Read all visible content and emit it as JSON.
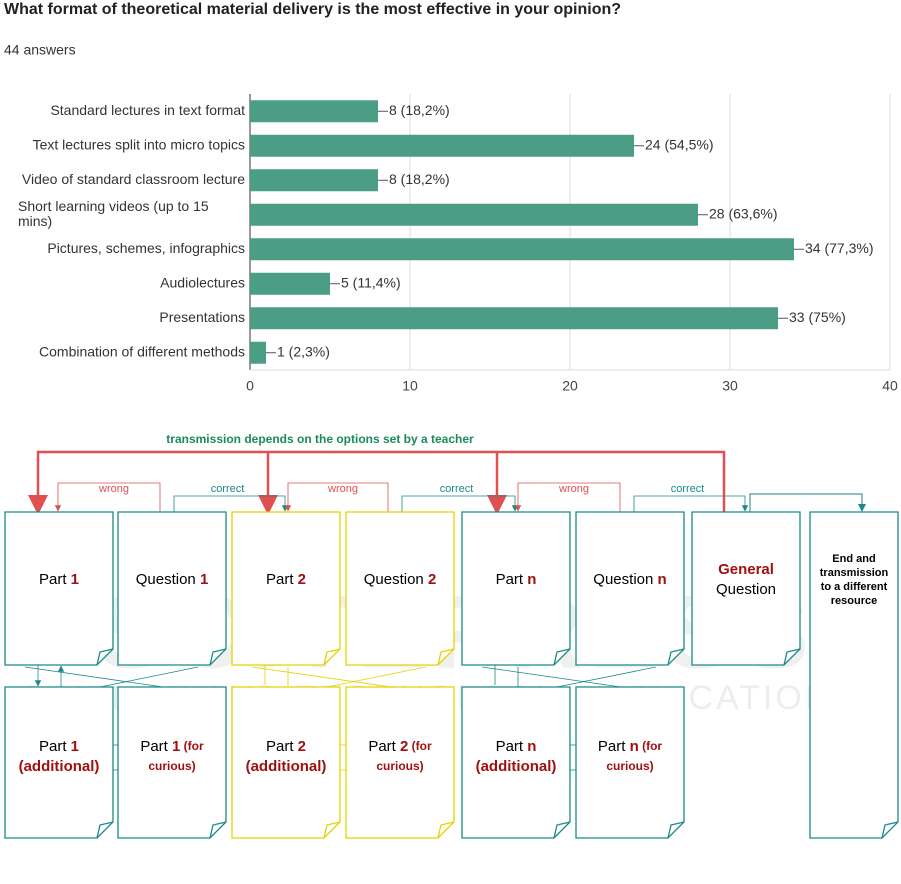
{
  "chart_data": {
    "type": "bar",
    "orientation": "horizontal",
    "title": "What format of theoretical material delivery is the most effective in your opinion?",
    "subtitle": "44 answers",
    "categories": [
      "Standard lectures in text format",
      "Text lectures split into micro topics",
      "Video of standard classroom lecture",
      "Short learning videos (up to 15 mins)",
      "Pictures, schemes, infographics",
      "Audiolectures",
      "Presentations",
      "Combination of different methods"
    ],
    "values": [
      8,
      24,
      8,
      28,
      34,
      5,
      33,
      1
    ],
    "value_labels": [
      "8 (18,2%)",
      "24 (54,5%)",
      "8 (18,2%)",
      "28 (63,6%)",
      "34 (77,3%)",
      "5 (11,4%)",
      "33 (75%)",
      "1 (2,3%)"
    ],
    "color": "#4b9e85",
    "xlim": [
      0,
      40
    ],
    "xticks": [
      0,
      10,
      20,
      30,
      40
    ],
    "grid": true
  },
  "diagram": {
    "title": "transmission depends on the options set by a teacher",
    "edges": [
      {
        "label": "wrong"
      },
      {
        "label": "correct"
      },
      {
        "label": "wrong"
      },
      {
        "label": "correct"
      },
      {
        "label": "wrong"
      },
      {
        "label": "correct"
      }
    ],
    "nodes": [
      {
        "color": "#1b8a86",
        "lines": [
          [
            [
              "Part ",
              "n"
            ],
            [
              "1",
              "r"
            ]
          ]
        ]
      },
      {
        "color": "#1b8a86",
        "lines": [
          [
            [
              "Question ",
              "n"
            ],
            [
              "1",
              "r"
            ]
          ]
        ]
      },
      {
        "color": "#e3d400",
        "lines": [
          [
            [
              "Part ",
              "n"
            ],
            [
              "2",
              "r"
            ]
          ]
        ]
      },
      {
        "color": "#e3d400",
        "lines": [
          [
            [
              "Question ",
              "n"
            ],
            [
              "2",
              "r"
            ]
          ]
        ]
      },
      {
        "color": "#1b8a86",
        "lines": [
          [
            [
              "Part ",
              "n"
            ],
            [
              "n",
              "r"
            ]
          ]
        ]
      },
      {
        "color": "#1b8a86",
        "lines": [
          [
            [
              "Question ",
              "n"
            ],
            [
              "n",
              "r"
            ]
          ]
        ]
      },
      {
        "color": "#1b8a86",
        "lines": [
          [
            [
              "General",
              "r"
            ]
          ],
          [
            [
              "Question",
              "n"
            ]
          ]
        ]
      },
      {
        "color": "#1b8a86",
        "lines": [
          [
            [
              "End and",
              "b"
            ]
          ],
          [
            [
              "transmission",
              "b"
            ]
          ],
          [
            [
              "to a different",
              "b"
            ]
          ],
          [
            [
              "resource",
              "b"
            ]
          ]
        ]
      },
      {
        "color": "#1b8a86",
        "lines": [
          [
            [
              "Part ",
              "n"
            ],
            [
              "1",
              "r"
            ]
          ],
          [
            [
              "(additional)",
              "r"
            ]
          ]
        ]
      },
      {
        "color": "#1b8a86",
        "lines": [
          [
            [
              "Part ",
              "n"
            ],
            [
              "1",
              "r"
            ],
            [
              " (for",
              "s"
            ]
          ],
          [
            [
              "curious)",
              "s"
            ]
          ]
        ]
      },
      {
        "color": "#e3d400",
        "lines": [
          [
            [
              "Part ",
              "n"
            ],
            [
              "2",
              "r"
            ]
          ],
          [
            [
              "(additional)",
              "r"
            ]
          ]
        ]
      },
      {
        "color": "#e3d400",
        "lines": [
          [
            [
              "Part ",
              "n"
            ],
            [
              "2",
              "r"
            ],
            [
              " (for",
              "s"
            ]
          ],
          [
            [
              "curious)",
              "s"
            ]
          ]
        ]
      },
      {
        "color": "#1b8a86",
        "lines": [
          [
            [
              "Part ",
              "n"
            ],
            [
              "n",
              "r"
            ]
          ],
          [
            [
              "(additional)",
              "r"
            ]
          ]
        ]
      },
      {
        "color": "#1b8a86",
        "lines": [
          [
            [
              "Part ",
              "n"
            ],
            [
              "n",
              "r"
            ],
            [
              " (for",
              "s"
            ]
          ],
          [
            [
              "curious)",
              "s"
            ]
          ]
        ]
      }
    ]
  },
  "watermark": [
    "SCITEPRESS",
    "SCIENCE AND TECHNOLOGY PUBLICATIONS"
  ]
}
